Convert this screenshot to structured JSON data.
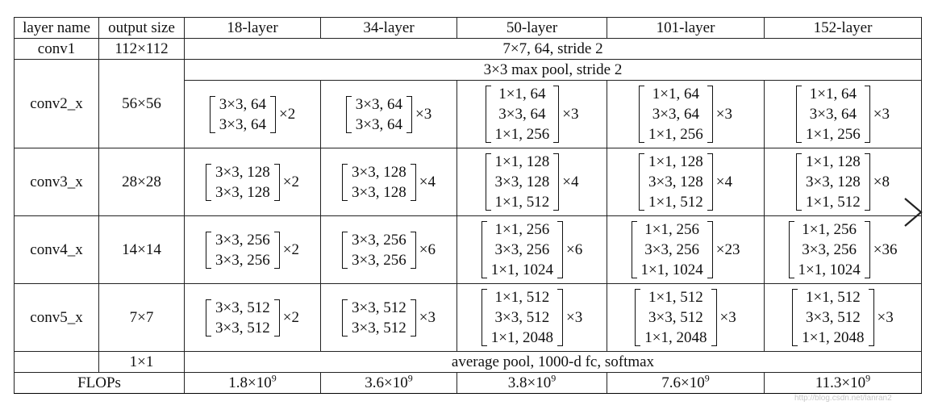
{
  "header": [
    "layer name",
    "output size",
    "18-layer",
    "34-layer",
    "50-layer",
    "101-layer",
    "152-layer"
  ],
  "conv1": {
    "name": "conv1",
    "size": "112×112",
    "spec": "7×7, 64, stride 2"
  },
  "pool": {
    "spec": "3×3 max pool, stride 2"
  },
  "stages": [
    {
      "name": "conv2_x",
      "size": "56×56",
      "cells": [
        {
          "lines": [
            "3×3, 64",
            "3×3, 64"
          ],
          "mult": "×2"
        },
        {
          "lines": [
            "3×3, 64",
            "3×3, 64"
          ],
          "mult": "×3"
        },
        {
          "lines": [
            "1×1, 64",
            "3×3, 64",
            "1×1, 256"
          ],
          "mult": "×3"
        },
        {
          "lines": [
            "1×1, 64",
            "3×3, 64",
            "1×1, 256"
          ],
          "mult": "×3"
        },
        {
          "lines": [
            "1×1, 64",
            "3×3, 64",
            "1×1, 256"
          ],
          "mult": "×3"
        }
      ]
    },
    {
      "name": "conv3_x",
      "size": "28×28",
      "cells": [
        {
          "lines": [
            "3×3, 128",
            "3×3, 128"
          ],
          "mult": "×2"
        },
        {
          "lines": [
            "3×3, 128",
            "3×3, 128"
          ],
          "mult": "×4"
        },
        {
          "lines": [
            "1×1, 128",
            "3×3, 128",
            "1×1, 512"
          ],
          "mult": "×4"
        },
        {
          "lines": [
            "1×1, 128",
            "3×3, 128",
            "1×1, 512"
          ],
          "mult": "×4"
        },
        {
          "lines": [
            "1×1, 128",
            "3×3, 128",
            "1×1, 512"
          ],
          "mult": "×8"
        }
      ]
    },
    {
      "name": "conv4_x",
      "size": "14×14",
      "cells": [
        {
          "lines": [
            "3×3, 256",
            "3×3, 256"
          ],
          "mult": "×2"
        },
        {
          "lines": [
            "3×3, 256",
            "3×3, 256"
          ],
          "mult": "×6"
        },
        {
          "lines": [
            "1×1, 256",
            "3×3, 256",
            "1×1, 1024"
          ],
          "mult": "×6"
        },
        {
          "lines": [
            "1×1, 256",
            "3×3, 256",
            "1×1, 1024"
          ],
          "mult": "×23"
        },
        {
          "lines": [
            "1×1, 256",
            "3×3, 256",
            "1×1, 1024"
          ],
          "mult": "×36"
        }
      ]
    },
    {
      "name": "conv5_x",
      "size": "7×7",
      "cells": [
        {
          "lines": [
            "3×3, 512",
            "3×3, 512"
          ],
          "mult": "×2"
        },
        {
          "lines": [
            "3×3, 512",
            "3×3, 512"
          ],
          "mult": "×3"
        },
        {
          "lines": [
            "1×1, 512",
            "3×3, 512",
            "1×1, 2048"
          ],
          "mult": "×3"
        },
        {
          "lines": [
            "1×1, 512",
            "3×3, 512",
            "1×1, 2048"
          ],
          "mult": "×3"
        },
        {
          "lines": [
            "1×1, 512",
            "3×3, 512",
            "1×1, 2048"
          ],
          "mult": "×3"
        }
      ]
    }
  ],
  "final": {
    "size": "1×1",
    "spec": "average pool, 1000-d fc, softmax"
  },
  "flops": {
    "label": "FLOPs",
    "values": [
      {
        "base": "1.8×10",
        "exp": "9"
      },
      {
        "base": "3.6×10",
        "exp": "9"
      },
      {
        "base": "3.8×10",
        "exp": "9"
      },
      {
        "base": "7.6×10",
        "exp": "9"
      },
      {
        "base": "11.3×10",
        "exp": "9"
      }
    ]
  },
  "nav": {
    "icon": "chevron-right-icon"
  },
  "watermark": "http://blog.csdn.net/lanran2"
}
